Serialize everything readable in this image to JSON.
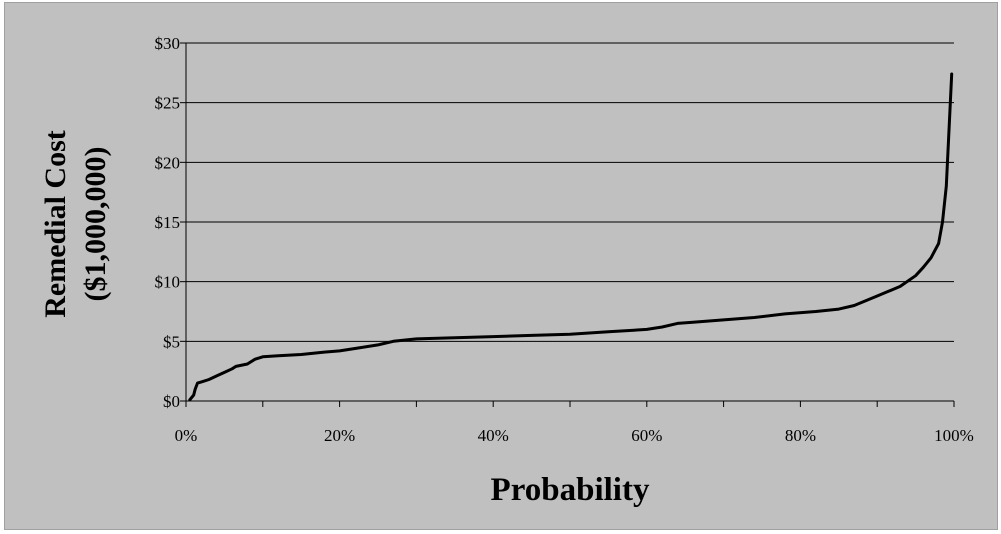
{
  "chart_data": {
    "type": "line",
    "title": "",
    "xlabel": "Probability",
    "ylabel_line1": "Remedial Cost",
    "ylabel_line2": "($1,000,000)",
    "xlim": [
      0,
      1
    ],
    "ylim": [
      0,
      30
    ],
    "x_ticks": [
      0,
      0.2,
      0.4,
      0.6,
      0.8,
      1.0
    ],
    "x_tick_labels": [
      "0%",
      "20%",
      "40%",
      "60%",
      "80%",
      "100%"
    ],
    "x_minor_ticks": [
      0.1,
      0.3,
      0.5,
      0.7,
      0.9
    ],
    "y_ticks": [
      0,
      5,
      10,
      15,
      20,
      25,
      30
    ],
    "y_tick_labels": [
      "$0",
      "$5",
      "$10",
      "$15",
      "$20",
      "$25",
      "$30"
    ],
    "grid": "horizontal",
    "legend": "none",
    "series": [
      {
        "color": "#000000",
        "x": [
          0.005,
          0.01,
          0.012,
          0.015,
          0.02,
          0.03,
          0.04,
          0.05,
          0.06,
          0.065,
          0.08,
          0.09,
          0.1,
          0.12,
          0.15,
          0.18,
          0.2,
          0.22,
          0.25,
          0.27,
          0.3,
          0.35,
          0.4,
          0.45,
          0.5,
          0.55,
          0.6,
          0.62,
          0.64,
          0.66,
          0.7,
          0.74,
          0.78,
          0.82,
          0.85,
          0.87,
          0.9,
          0.93,
          0.95,
          0.96,
          0.97,
          0.98,
          0.985,
          0.99,
          0.993,
          0.997
        ],
        "y": [
          0.1,
          0.5,
          1.0,
          1.5,
          1.6,
          1.8,
          2.1,
          2.4,
          2.7,
          2.9,
          3.1,
          3.5,
          3.7,
          3.8,
          3.9,
          4.1,
          4.2,
          4.4,
          4.7,
          5.0,
          5.2,
          5.3,
          5.4,
          5.5,
          5.6,
          5.8,
          6.0,
          6.2,
          6.5,
          6.6,
          6.8,
          7.0,
          7.3,
          7.5,
          7.7,
          8.0,
          8.8,
          9.6,
          10.5,
          11.2,
          12.0,
          13.2,
          15.0,
          18.0,
          22.0,
          27.4
        ]
      }
    ]
  }
}
